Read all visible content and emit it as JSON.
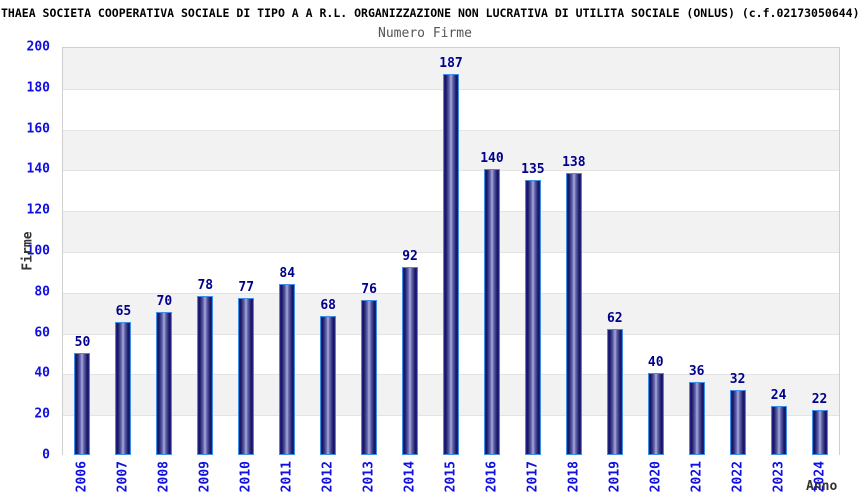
{
  "title": "THAEA SOCIETA COOPERATIVA SOCIALE DI TIPO A A R.L. ORGANIZZAZIONE NON LUCRATIVA DI UTILITA SOCIALE (ONLUS) (c.f.02173050644)",
  "chart_data": {
    "type": "bar",
    "title": "Numero Firme",
    "xlabel": "Anno",
    "ylabel": "Firme",
    "categories": [
      "2006",
      "2007",
      "2008",
      "2009",
      "2010",
      "2011",
      "2012",
      "2013",
      "2014",
      "2015",
      "2016",
      "2017",
      "2018",
      "2019",
      "2020",
      "2021",
      "2022",
      "2023",
      "2024"
    ],
    "values": [
      50,
      65,
      70,
      78,
      77,
      84,
      68,
      76,
      92,
      187,
      140,
      135,
      138,
      62,
      40,
      36,
      32,
      24,
      22
    ],
    "ylim": [
      0,
      200
    ],
    "ytick_step": 20,
    "legend": "none",
    "grid": "horizontal-bands",
    "colors": {
      "title_text": "#000000",
      "subtitle_text": "#555555",
      "tick_label": "#0f0fe0",
      "value_label": "#00008c",
      "axis_title": "#333333",
      "bar_border": "#3f8fe8",
      "bar_gradient": [
        "#23238c",
        "#16165e",
        "#6666b0",
        "#aaaadc",
        "#6666b0",
        "#16165e",
        "#23238c"
      ],
      "band_fill": "#f2f2f2",
      "gridline": "#e3e3e3",
      "plot_border": "#cfcfcf"
    }
  }
}
